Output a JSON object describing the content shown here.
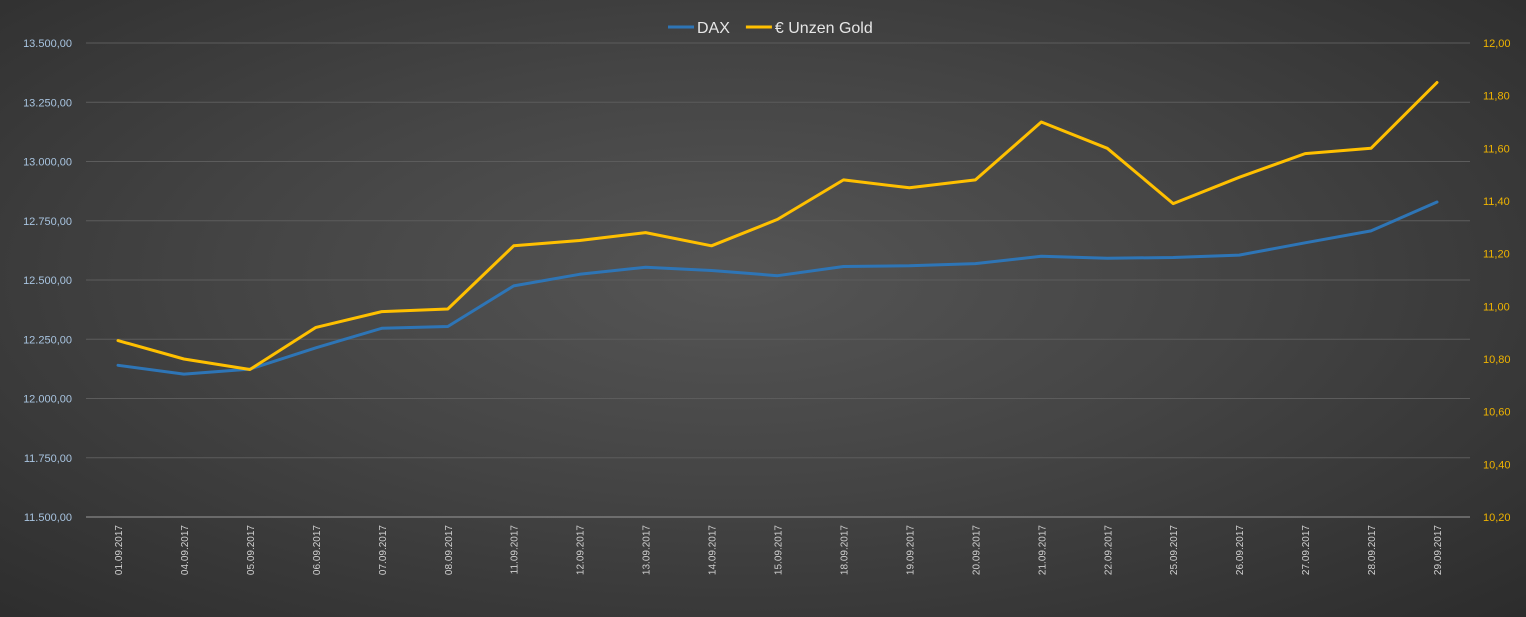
{
  "chart_data": {
    "type": "line",
    "categories": [
      "01.09.2017",
      "04.09.2017",
      "05.09.2017",
      "06.09.2017",
      "07.09.2017",
      "08.09.2017",
      "11.09.2017",
      "12.09.2017",
      "13.09.2017",
      "14.09.2017",
      "15.09.2017",
      "18.09.2017",
      "19.09.2017",
      "20.09.2017",
      "21.09.2017",
      "22.09.2017",
      "25.09.2017",
      "26.09.2017",
      "27.09.2017",
      "28.09.2017",
      "29.09.2017"
    ],
    "series": [
      {
        "name": "DAX",
        "axis": "left",
        "color": "#2e75b6",
        "values": [
          12140,
          12103,
          12124,
          12214,
          12296,
          12304,
          12475,
          12524,
          12554,
          12540,
          12518,
          12557,
          12560,
          12569,
          12600,
          12592,
          12595,
          12605,
          12657,
          12707,
          12829
        ]
      },
      {
        "name": "€ Unzen Gold",
        "axis": "right",
        "color": "#ffc000",
        "values": [
          10.87,
          10.8,
          10.76,
          10.92,
          10.98,
          10.99,
          11.23,
          11.25,
          11.28,
          11.23,
          11.33,
          11.48,
          11.45,
          11.48,
          11.7,
          11.6,
          11.39,
          11.49,
          11.58,
          11.6,
          11.85
        ]
      }
    ],
    "y_left": {
      "min": 11500,
      "max": 13500,
      "ticks": [
        "11.500,00",
        "11.750,00",
        "12.000,00",
        "12.250,00",
        "12.500,00",
        "12.750,00",
        "13.000,00",
        "13.250,00",
        "13.500,00"
      ]
    },
    "y_right": {
      "min": 10.2,
      "max": 12.0,
      "ticks": [
        "10,20",
        "10,40",
        "10,60",
        "10,80",
        "11,00",
        "11,20",
        "11,40",
        "11,60",
        "11,80",
        "12,00"
      ]
    },
    "grid": true,
    "legend": "top-center",
    "title": "",
    "xlabel": "",
    "ylabel": ""
  }
}
